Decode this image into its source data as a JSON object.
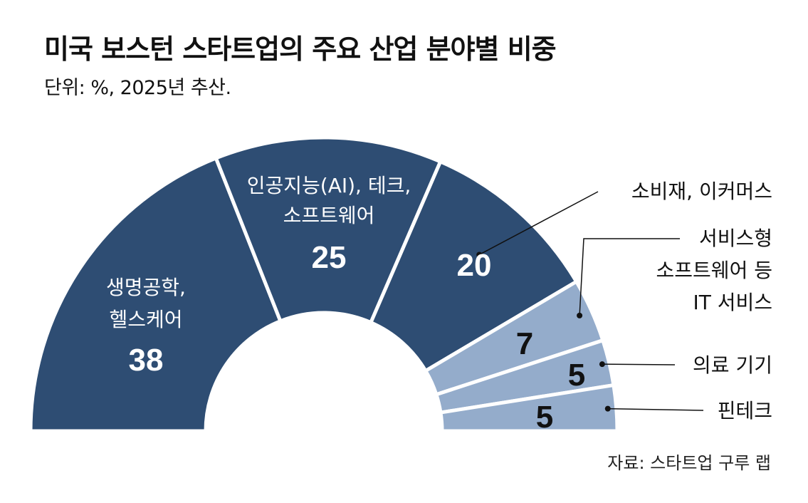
{
  "title": "미국 보스턴 스타트업의 주요 산업 분야별 비중",
  "subtitle": "단위: %, 2025년 추산.",
  "source": "자료: 스타트업 구루 랩",
  "colors": {
    "dark": "#2e4d73",
    "light": "#94accb",
    "separator": "#ffffff",
    "leader": "#111111"
  },
  "chart_data": {
    "type": "pie",
    "variant": "half-donut",
    "unit": "%",
    "series": [
      {
        "label": "생명공학, 헬스케어",
        "value": 38,
        "color": "#2e4d73"
      },
      {
        "label": "인공지능(AI), 테크, 소프트웨어",
        "value": 25,
        "color": "#2e4d73"
      },
      {
        "label": "소비재, 이커머스",
        "value": 20,
        "color": "#2e4d73"
      },
      {
        "label": "서비스형 소프트웨어 등 IT 서비스",
        "value": 7,
        "color": "#94accb"
      },
      {
        "label": "의료 기기",
        "value": 5,
        "color": "#94accb"
      },
      {
        "label": "핀테크",
        "value": 5,
        "color": "#94accb"
      }
    ]
  },
  "segment_text": {
    "s0_line1": "생명공학,",
    "s0_line2": "헬스케어",
    "s1_line1": "인공지능(AI), 테크,",
    "s1_line2": "소프트웨어"
  },
  "external_labels": {
    "s2": "소비재, 이커머스",
    "s3_line1": "서비스형",
    "s3_line2": "소프트웨어 등",
    "s3_line3": "IT 서비스",
    "s4": "의료 기기",
    "s5": "핀테크"
  }
}
